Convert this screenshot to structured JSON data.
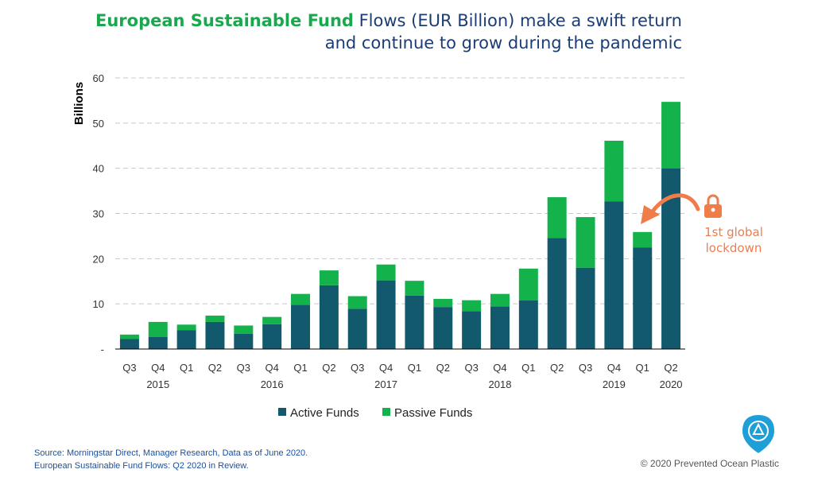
{
  "title": {
    "highlight": "European Sustainable Fund",
    "line1_rest": " Flows (EUR Billion) make a swift return",
    "line2": "and continue to grow during the pandemic"
  },
  "colors": {
    "active": "#12596e",
    "passive": "#13b24b",
    "annotation": "#f07c4a",
    "title_blue": "#1b3d73",
    "title_green": "#1aa84f"
  },
  "annotation": {
    "line1": "1st global",
    "line2": "lockdown",
    "icon": "lock-icon"
  },
  "footer": {
    "source_line1": "Source: Morningstar Direct, Manager Research, Data as of June 2020.",
    "source_line2": "European Sustainable Fund Flows: Q2 2020 in Review.",
    "copyright": "© 2020 Prevented Ocean Plastic",
    "logo_icon": "prevented-ocean-plastic-logo-icon"
  },
  "chart_data": {
    "type": "bar",
    "stacked": true,
    "ylabel": "Billions",
    "ylim": [
      0,
      60
    ],
    "yticks": [
      "-",
      "10",
      "20",
      "30",
      "40",
      "50",
      "60"
    ],
    "grid": true,
    "legend": "bottom",
    "categories": [
      "Q3",
      "Q4",
      "Q1",
      "Q2",
      "Q3",
      "Q4",
      "Q1",
      "Q2",
      "Q3",
      "Q4",
      "Q1",
      "Q2",
      "Q3",
      "Q4",
      "Q1",
      "Q2",
      "Q3",
      "Q4",
      "Q1",
      "Q2"
    ],
    "year_labels": [
      {
        "index": 1,
        "label": "2015"
      },
      {
        "index": 5,
        "label": "2016"
      },
      {
        "index": 9,
        "label": "2017"
      },
      {
        "index": 13,
        "label": "2018"
      },
      {
        "index": 17,
        "label": "2019"
      },
      {
        "index": 19,
        "label": "2020"
      }
    ],
    "series": [
      {
        "name": "Active Funds",
        "values": [
          2.2,
          2.7,
          4.2,
          6.0,
          3.4,
          5.5,
          9.8,
          14.1,
          8.9,
          15.2,
          11.8,
          9.3,
          8.4,
          9.4,
          10.8,
          24.6,
          18.0,
          32.7,
          22.5,
          40.0
        ]
      },
      {
        "name": "Passive Funds",
        "values": [
          1.0,
          3.3,
          1.2,
          1.4,
          1.8,
          1.6,
          2.4,
          3.3,
          2.8,
          3.5,
          3.3,
          1.8,
          2.4,
          2.8,
          7.0,
          9.0,
          11.2,
          13.4,
          3.4,
          14.7
        ]
      }
    ]
  }
}
